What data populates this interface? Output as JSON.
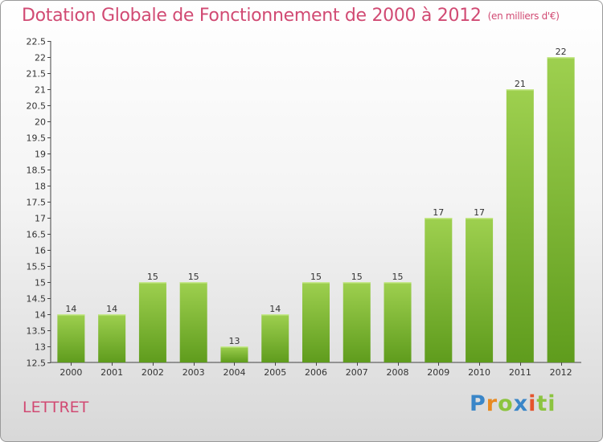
{
  "title": "Dotation Globale de Fonctionnement de 2000 à 2012",
  "unit_label": "(en milliers d'€)",
  "commune": "LETTRET",
  "logo": [
    "P",
    "r",
    "o",
    "x",
    "i",
    "ti"
  ],
  "colors": {
    "title": "#d14a73",
    "bar_top": "#9ed04f",
    "bar_bottom": "#5f9c1d"
  },
  "chart_data": {
    "type": "bar",
    "title": "Dotation Globale de Fonctionnement de 2000 à 2012",
    "xlabel": "",
    "ylabel": "(en milliers d'€)",
    "categories": [
      "2000",
      "2001",
      "2002",
      "2003",
      "2004",
      "2005",
      "2006",
      "2007",
      "2008",
      "2009",
      "2010",
      "2011",
      "2012"
    ],
    "values": [
      14,
      14,
      15,
      15,
      13,
      14,
      15,
      15,
      15,
      17,
      17,
      21,
      22
    ],
    "ylim": [
      12.5,
      22.5
    ],
    "yticks": [
      "12.5",
      "13",
      "13.5",
      "14",
      "14.5",
      "15",
      "15.5",
      "16",
      "16.5",
      "17",
      "17.5",
      "18",
      "18.5",
      "19",
      "19.5",
      "20",
      "20.5",
      "21",
      "21.5",
      "22",
      "22.5"
    ],
    "grid": false,
    "legend": "none"
  }
}
